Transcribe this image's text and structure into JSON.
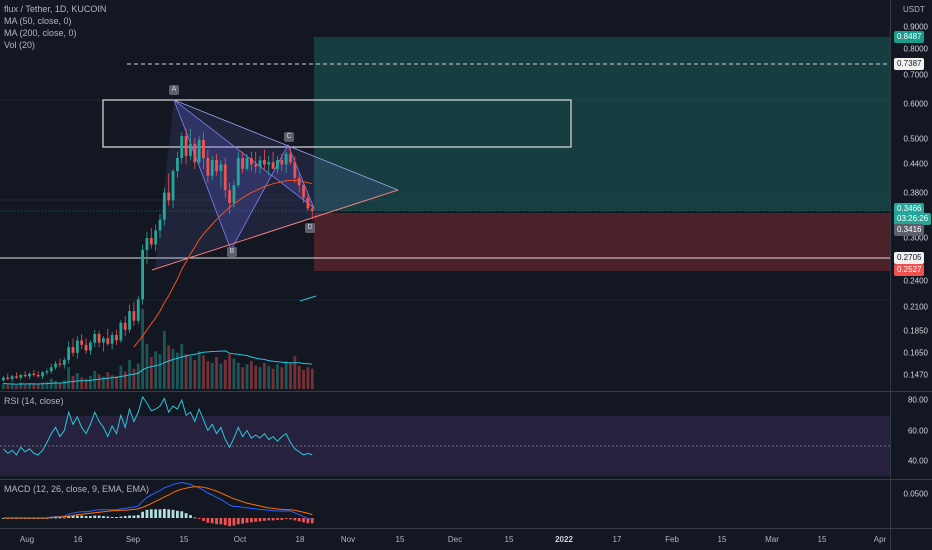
{
  "header": {
    "symbol_line": "flux / Tether, 1D, KUCOIN",
    "ma50": "MA (50, close, 0)",
    "ma200": "MA (200, close, 0)",
    "vol": "Vol (20)"
  },
  "rsi_panel": {
    "label": "RSI (14, close)",
    "ticks": [
      "80.00",
      "60.00",
      "40.00"
    ]
  },
  "macd_panel": {
    "label": "MACD (12, 26, close, 9, EMA, EMA)",
    "tick": "0.0500"
  },
  "price_axis": {
    "currency": "USDT",
    "ticks": [
      "0.9000",
      "0.8000",
      "0.7000",
      "0.6000",
      "0.5000",
      "0.4400",
      "0.3800",
      "0.3000",
      "0.2400",
      "0.2100",
      "0.1850",
      "0.1650",
      "0.1470"
    ],
    "badges": {
      "target": "0.8487",
      "dashed": "0.7387",
      "current": "0.3466",
      "countdown": "03:26:26",
      "cursor": "0.3416",
      "support": "0.2705",
      "stop": "0.2527"
    }
  },
  "pattern_points": [
    "A",
    "B",
    "C",
    "D"
  ],
  "time_axis": [
    "Aug",
    "16",
    "Sep",
    "15",
    "Oct",
    "18",
    "Nov",
    "15",
    "Dec",
    "15",
    "2022",
    "17",
    "Feb",
    "15",
    "Mar",
    "15",
    "Apr"
  ],
  "colors": {
    "background": "#131722",
    "up": "#26a69a",
    "down": "#ef5350",
    "ma50": "#2196f3",
    "ma200": "#f4511e",
    "rsi": "#2bc4d9",
    "macd": "#2962ff",
    "signal": "#ff6d00",
    "pattern": "#5c5ee0",
    "target_zone": "#1a6f66",
    "stop_zone": "#7a2a32"
  },
  "chart_data": {
    "type": "candlestick",
    "ohlc": [
      [
        0.143,
        0.146,
        0.142,
        0.145
      ],
      [
        0.145,
        0.148,
        0.143,
        0.144
      ],
      [
        0.144,
        0.147,
        0.142,
        0.146
      ],
      [
        0.146,
        0.149,
        0.144,
        0.145
      ],
      [
        0.145,
        0.148,
        0.143,
        0.147
      ],
      [
        0.147,
        0.15,
        0.145,
        0.146
      ],
      [
        0.146,
        0.149,
        0.144,
        0.148
      ],
      [
        0.148,
        0.151,
        0.146,
        0.147
      ],
      [
        0.147,
        0.15,
        0.145,
        0.146
      ],
      [
        0.146,
        0.15,
        0.144,
        0.149
      ],
      [
        0.149,
        0.152,
        0.147,
        0.15
      ],
      [
        0.15,
        0.156,
        0.148,
        0.153
      ],
      [
        0.153,
        0.158,
        0.151,
        0.156
      ],
      [
        0.156,
        0.16,
        0.153,
        0.155
      ],
      [
        0.155,
        0.161,
        0.152,
        0.159
      ],
      [
        0.159,
        0.175,
        0.156,
        0.17
      ],
      [
        0.17,
        0.178,
        0.162,
        0.165
      ],
      [
        0.165,
        0.18,
        0.16,
        0.176
      ],
      [
        0.176,
        0.182,
        0.168,
        0.172
      ],
      [
        0.172,
        0.178,
        0.164,
        0.167
      ],
      [
        0.167,
        0.176,
        0.163,
        0.174
      ],
      [
        0.174,
        0.186,
        0.17,
        0.182
      ],
      [
        0.182,
        0.185,
        0.17,
        0.174
      ],
      [
        0.174,
        0.18,
        0.166,
        0.178
      ],
      [
        0.178,
        0.187,
        0.171,
        0.173
      ],
      [
        0.173,
        0.184,
        0.168,
        0.181
      ],
      [
        0.181,
        0.186,
        0.172,
        0.176
      ],
      [
        0.176,
        0.196,
        0.174,
        0.193
      ],
      [
        0.193,
        0.2,
        0.18,
        0.186
      ],
      [
        0.186,
        0.212,
        0.183,
        0.205
      ],
      [
        0.205,
        0.215,
        0.19,
        0.195
      ],
      [
        0.195,
        0.222,
        0.192,
        0.218
      ],
      [
        0.218,
        0.29,
        0.212,
        0.282
      ],
      [
        0.282,
        0.31,
        0.262,
        0.3
      ],
      [
        0.3,
        0.316,
        0.284,
        0.29
      ],
      [
        0.29,
        0.322,
        0.28,
        0.312
      ],
      [
        0.312,
        0.34,
        0.3,
        0.33
      ],
      [
        0.33,
        0.39,
        0.32,
        0.38
      ],
      [
        0.38,
        0.42,
        0.355,
        0.365
      ],
      [
        0.365,
        0.43,
        0.35,
        0.425
      ],
      [
        0.425,
        0.47,
        0.41,
        0.455
      ],
      [
        0.455,
        0.52,
        0.44,
        0.51
      ],
      [
        0.51,
        0.53,
        0.44,
        0.46
      ],
      [
        0.46,
        0.53,
        0.45,
        0.49
      ],
      [
        0.49,
        0.505,
        0.43,
        0.445
      ],
      [
        0.445,
        0.51,
        0.44,
        0.5
      ],
      [
        0.5,
        0.52,
        0.43,
        0.455
      ],
      [
        0.455,
        0.475,
        0.4,
        0.415
      ],
      [
        0.415,
        0.46,
        0.405,
        0.45
      ],
      [
        0.45,
        0.465,
        0.415,
        0.425
      ],
      [
        0.425,
        0.45,
        0.39,
        0.44
      ],
      [
        0.44,
        0.455,
        0.37,
        0.385
      ],
      [
        0.385,
        0.4,
        0.34,
        0.36
      ],
      [
        0.36,
        0.405,
        0.35,
        0.395
      ],
      [
        0.395,
        0.47,
        0.39,
        0.455
      ],
      [
        0.455,
        0.47,
        0.42,
        0.43
      ],
      [
        0.43,
        0.465,
        0.425,
        0.455
      ],
      [
        0.455,
        0.47,
        0.425,
        0.44
      ],
      [
        0.44,
        0.47,
        0.42,
        0.435
      ],
      [
        0.435,
        0.46,
        0.42,
        0.45
      ],
      [
        0.45,
        0.475,
        0.43,
        0.44
      ],
      [
        0.44,
        0.46,
        0.415,
        0.445
      ],
      [
        0.445,
        0.47,
        0.43,
        0.43
      ],
      [
        0.43,
        0.46,
        0.42,
        0.45
      ],
      [
        0.45,
        0.465,
        0.425,
        0.44
      ],
      [
        0.44,
        0.47,
        0.42,
        0.465
      ],
      [
        0.465,
        0.48,
        0.44,
        0.445
      ],
      [
        0.445,
        0.46,
        0.4,
        0.41
      ],
      [
        0.41,
        0.42,
        0.38,
        0.395
      ],
      [
        0.395,
        0.4,
        0.36,
        0.37
      ],
      [
        0.37,
        0.378,
        0.345,
        0.35
      ],
      [
        0.35,
        0.36,
        0.33,
        0.345
      ]
    ],
    "volume": [
      8,
      6,
      7,
      5,
      9,
      6,
      8,
      7,
      6,
      9,
      10,
      14,
      11,
      9,
      12,
      30,
      18,
      22,
      16,
      14,
      18,
      25,
      20,
      17,
      23,
      19,
      18,
      32,
      24,
      40,
      28,
      35,
      110,
      62,
      44,
      52,
      48,
      80,
      60,
      55,
      50,
      62,
      48,
      45,
      40,
      52,
      46,
      38,
      36,
      44,
      35,
      40,
      48,
      42,
      36,
      30,
      34,
      38,
      32,
      30,
      36,
      32,
      28,
      34,
      30,
      38,
      36,
      45,
      32,
      26,
      30,
      28
    ],
    "ma50": [
      null,
      null,
      null,
      null,
      null,
      null,
      null,
      null,
      null,
      null,
      null,
      null,
      null,
      null,
      null,
      null,
      null,
      null,
      null,
      null,
      null,
      null,
      null,
      null,
      null,
      null,
      null,
      null,
      null,
      null,
      0.17,
      0.175,
      0.18,
      0.186,
      0.192,
      0.198,
      0.205,
      0.214,
      0.222,
      0.232,
      0.242,
      0.255,
      0.265,
      0.276,
      0.286,
      0.297,
      0.306,
      0.314,
      0.322,
      0.33,
      0.338,
      0.345,
      0.352,
      0.358,
      0.364,
      0.37,
      0.375,
      0.38,
      0.384,
      0.388,
      0.392,
      0.395,
      0.398,
      0.4,
      0.402,
      0.404,
      0.405,
      0.405,
      0.404,
      0.402,
      0.4,
      0.398
    ],
    "rsi": [
      48,
      45,
      47,
      44,
      49,
      46,
      48,
      45,
      44,
      47,
      52,
      58,
      62,
      56,
      60,
      72,
      64,
      69,
      62,
      58,
      64,
      72,
      66,
      62,
      56,
      63,
      58,
      70,
      62,
      74,
      66,
      72,
      82,
      78,
      73,
      74,
      76,
      81,
      72,
      76,
      74,
      80,
      70,
      72,
      66,
      74,
      67,
      60,
      64,
      58,
      62,
      54,
      49,
      55,
      62,
      56,
      60,
      55,
      57,
      55,
      58,
      54,
      56,
      53,
      56,
      58,
      52,
      48,
      46,
      44,
      45,
      44
    ],
    "macd": [
      0,
      0,
      0,
      0,
      0,
      0,
      0,
      0,
      0,
      0,
      0,
      0.002,
      0.003,
      0.003,
      0.004,
      0.008,
      0.01,
      0.012,
      0.013,
      0.013,
      0.014,
      0.016,
      0.017,
      0.017,
      0.017,
      0.017,
      0.017,
      0.019,
      0.02,
      0.022,
      0.023,
      0.025,
      0.035,
      0.043,
      0.048,
      0.053,
      0.057,
      0.063,
      0.066,
      0.07,
      0.072,
      0.074,
      0.072,
      0.07,
      0.066,
      0.063,
      0.058,
      0.052,
      0.048,
      0.043,
      0.039,
      0.033,
      0.027,
      0.024,
      0.024,
      0.022,
      0.021,
      0.02,
      0.019,
      0.018,
      0.017,
      0.016,
      0.015,
      0.015,
      0.014,
      0.015,
      0.014,
      0.011,
      0.007,
      0.003,
      -0.001,
      -0.004
    ],
    "signal": [
      0,
      0,
      0,
      0,
      0,
      0,
      0,
      0,
      0,
      0,
      0,
      0.001,
      0.002,
      0.002,
      0.003,
      0.004,
      0.005,
      0.007,
      0.008,
      0.009,
      0.01,
      0.011,
      0.012,
      0.013,
      0.014,
      0.015,
      0.015,
      0.016,
      0.016,
      0.017,
      0.018,
      0.019,
      0.022,
      0.026,
      0.03,
      0.035,
      0.039,
      0.044,
      0.048,
      0.053,
      0.057,
      0.06,
      0.062,
      0.064,
      0.065,
      0.065,
      0.064,
      0.062,
      0.059,
      0.056,
      0.052,
      0.048,
      0.044,
      0.04,
      0.037,
      0.034,
      0.031,
      0.029,
      0.027,
      0.025,
      0.023,
      0.021,
      0.02,
      0.019,
      0.018,
      0.017,
      0.017,
      0.016,
      0.014,
      0.012,
      0.01,
      0.007
    ]
  }
}
